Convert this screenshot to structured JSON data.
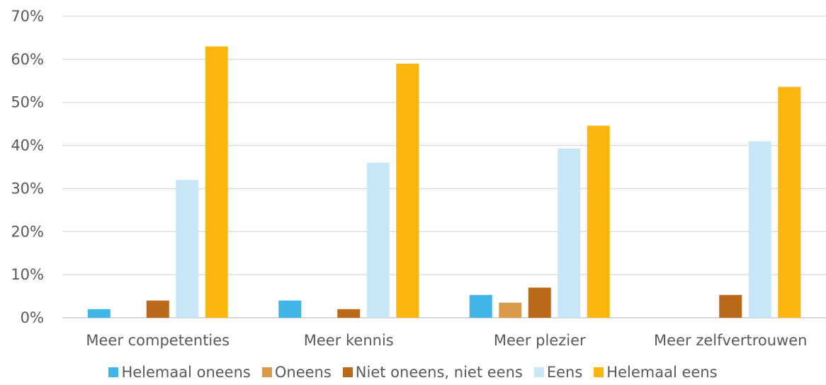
{
  "chart_data": {
    "type": "bar",
    "categories": [
      "Meer competenties",
      "Meer kennis",
      "Meer plezier",
      "Meer zelfvertrouwen"
    ],
    "series": [
      {
        "name": "Helemaal oneens",
        "color": "#41B6E6",
        "values": [
          2,
          4,
          5.3,
          0
        ]
      },
      {
        "name": "Oneens",
        "color": "#D89A4A",
        "values": [
          0,
          0,
          3.5,
          0
        ]
      },
      {
        "name": "Niet oneens, niet eens",
        "color": "#B8691A",
        "values": [
          4,
          2,
          7,
          5.3
        ]
      },
      {
        "name": "Eens",
        "color": "#C7E7F7",
        "values": [
          32,
          36,
          39.3,
          41
        ]
      },
      {
        "name": "Helemaal eens",
        "color": "#FBB70F",
        "values": [
          63,
          59,
          44.6,
          53.6
        ]
      }
    ],
    "ylim": [
      0,
      70
    ],
    "yticks": [
      "0%",
      "10%",
      "20%",
      "30%",
      "40%",
      "50%",
      "60%",
      "70%"
    ],
    "grid": true,
    "legend_position": "bottom"
  }
}
